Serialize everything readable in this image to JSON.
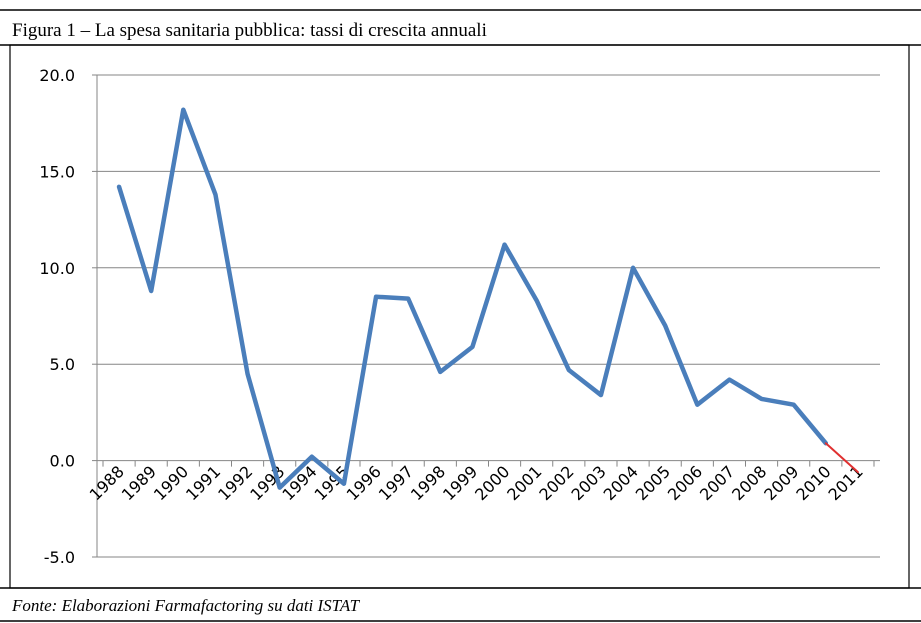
{
  "title": "Figura 1 – La spesa sanitaria pubblica: tassi di crescita annuali",
  "source": "Fonte: Elaborazioni Farmafactoring su dati ISTAT",
  "chart_data": {
    "type": "line",
    "categories": [
      "1988",
      "1989",
      "1990",
      "1991",
      "1992",
      "1993",
      "1994",
      "1995",
      "1996",
      "1997",
      "1998",
      "1999",
      "2000",
      "2001",
      "2002",
      "2003",
      "2004",
      "2005",
      "2006",
      "2007",
      "2008",
      "2009",
      "2010",
      "2011"
    ],
    "series": [
      {
        "color": "#4a7ebb",
        "values": [
          14.2,
          8.8,
          18.2,
          13.8,
          4.5,
          -1.4,
          0.2,
          -1.2,
          8.5,
          8.4,
          4.6,
          5.9,
          11.2,
          8.3,
          4.7,
          3.4,
          10.0,
          7.0,
          2.9,
          4.2,
          3.2,
          2.9,
          0.9,
          null
        ]
      },
      {
        "color": "#e03030",
        "values": [
          null,
          null,
          null,
          null,
          null,
          null,
          null,
          null,
          null,
          null,
          null,
          null,
          null,
          null,
          null,
          null,
          null,
          null,
          null,
          null,
          null,
          null,
          0.9,
          -0.6
        ]
      }
    ],
    "ylim": [
      -5,
      20
    ],
    "yticks": [
      {
        "value": -5,
        "label": "-5.0"
      },
      {
        "value": 0,
        "label": "0.0"
      },
      {
        "value": 5,
        "label": "5.0"
      },
      {
        "value": 10,
        "label": "10.0"
      },
      {
        "value": 15,
        "label": "15.0"
      },
      {
        "value": 20,
        "label": "20.0"
      }
    ],
    "grid": true
  }
}
